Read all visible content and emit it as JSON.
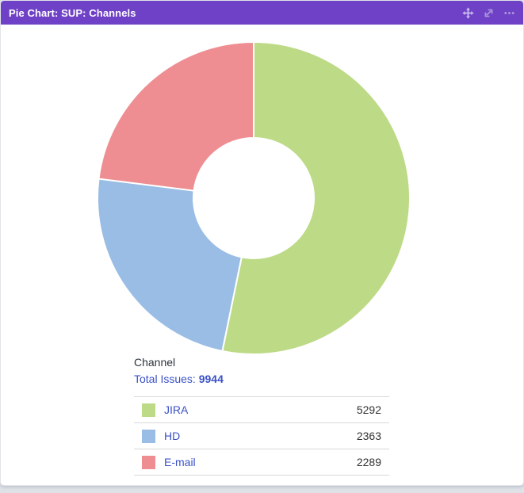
{
  "gadget": {
    "title": "Pie Chart: SUP: Channels",
    "header_bg": "#6f41c6",
    "icons": [
      {
        "name": "drag-icon",
        "color": "#cbbcf0"
      },
      {
        "name": "expand-icon",
        "color": "#ab96dd"
      },
      {
        "name": "more-options-icon",
        "color": "#ab96dd"
      }
    ]
  },
  "summary": {
    "category_label": "Channel",
    "total_label": "Total Issues:",
    "total_value": "9944"
  },
  "chart_data": {
    "type": "pie",
    "donut": true,
    "start_angle_deg": 0,
    "direction": "clockwise",
    "inner_radius_ratio": 0.386,
    "total": 9944,
    "title": "Pie Chart: SUP: Channels",
    "legend_position": "bottom-table",
    "segments": [
      {
        "label": "JIRA",
        "value": 5292,
        "color": "#bdda86"
      },
      {
        "label": "HD",
        "value": 2363,
        "color": "#99bde4"
      },
      {
        "label": "E-mail",
        "value": 2289,
        "color": "#ee8e92"
      }
    ],
    "link_color": "#3b51c8"
  }
}
